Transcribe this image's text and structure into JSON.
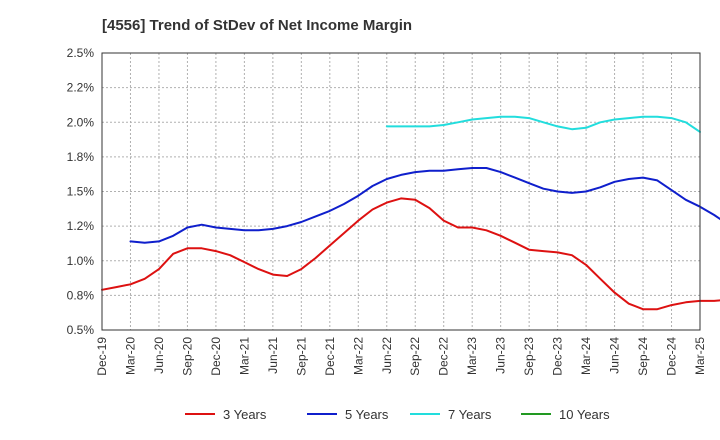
{
  "chart_data": {
    "type": "line",
    "title": "[4556]  Trend of StDev of Net Income Margin",
    "xlabel": "",
    "ylabel": "",
    "x_ticks": [
      "Dec-19",
      "Mar-20",
      "Jun-20",
      "Sep-20",
      "Dec-20",
      "Mar-21",
      "Jun-21",
      "Sep-21",
      "Dec-21",
      "Mar-22",
      "Jun-22",
      "Sep-22",
      "Dec-22",
      "Mar-23",
      "Jun-23",
      "Sep-23",
      "Dec-23",
      "Mar-24",
      "Jun-24",
      "Sep-24",
      "Dec-24",
      "Mar-25"
    ],
    "y_ticks": [
      "0.5%",
      "0.8%",
      "1.0%",
      "1.2%",
      "1.5%",
      "1.8%",
      "2.0%",
      "2.2%",
      "2.5%"
    ],
    "ylim": [
      0.5,
      2.5
    ],
    "grid": true,
    "legend_position": "bottom",
    "series": [
      {
        "name": "3 Years",
        "color": "#dd1111",
        "start_index": 0,
        "values": [
          0.79,
          0.81,
          0.83,
          0.87,
          0.94,
          1.05,
          1.09,
          1.09,
          1.07,
          1.04,
          0.99,
          0.94,
          0.9,
          0.89,
          0.94,
          1.02,
          1.11,
          1.2,
          1.29,
          1.37,
          1.42,
          1.45,
          1.44,
          1.38,
          1.29,
          1.24,
          1.24,
          1.22,
          1.18,
          1.13,
          1.08,
          1.07,
          1.06,
          1.04,
          0.97,
          0.87,
          0.77,
          0.69,
          0.65,
          0.65,
          0.68,
          0.7,
          0.71,
          0.71,
          0.72,
          0.75
        ]
      },
      {
        "name": "5 Years",
        "color": "#0f1fcc",
        "start_index": 2,
        "values": [
          1.14,
          1.13,
          1.14,
          1.18,
          1.24,
          1.26,
          1.24,
          1.23,
          1.22,
          1.22,
          1.23,
          1.25,
          1.28,
          1.32,
          1.36,
          1.41,
          1.47,
          1.54,
          1.59,
          1.62,
          1.64,
          1.65,
          1.65,
          1.66,
          1.67,
          1.67,
          1.64,
          1.6,
          1.56,
          1.52,
          1.5,
          1.49,
          1.5,
          1.53,
          1.57,
          1.59,
          1.6,
          1.58,
          1.51,
          1.44,
          1.39,
          1.33,
          1.26
        ]
      },
      {
        "name": "7 Years",
        "color": "#22dddd",
        "start_index": 20,
        "values": [
          1.97,
          1.97,
          1.97,
          1.97,
          1.98,
          2.0,
          2.02,
          2.03,
          2.04,
          2.04,
          2.03,
          2.0,
          1.97,
          1.95,
          1.96,
          2.0,
          2.02,
          2.03,
          2.04,
          2.04,
          2.03,
          2.0,
          1.93
        ]
      },
      {
        "name": "10 Years",
        "color": "#229922",
        "start_index": 0,
        "values": []
      }
    ]
  }
}
